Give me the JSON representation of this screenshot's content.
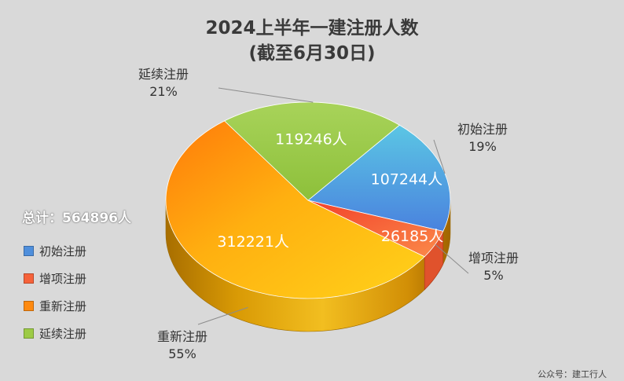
{
  "chart_data": {
    "type": "pie",
    "title": "2024上半年一建注册人数",
    "subtitle": "(截至6月30日)",
    "total_label": "总计：564896人",
    "series": [
      {
        "name": "初始注册",
        "value": 107244,
        "value_label": "107244人",
        "percent_label": "19%",
        "color": "#4f8fdc"
      },
      {
        "name": "增项注册",
        "value": 26185,
        "value_label": "26185人",
        "percent_label": "5%",
        "color": "#f6623a"
      },
      {
        "name": "重新注册",
        "value": 312221,
        "value_label": "312221人",
        "percent_label": "55%",
        "color": "#ffbe10"
      },
      {
        "name": "延续注册",
        "value": 119246,
        "value_label": "119246人",
        "percent_label": "21%",
        "color": "#9dcb46"
      }
    ],
    "legend_position": "left"
  },
  "watermark": "公众号：建工行人"
}
